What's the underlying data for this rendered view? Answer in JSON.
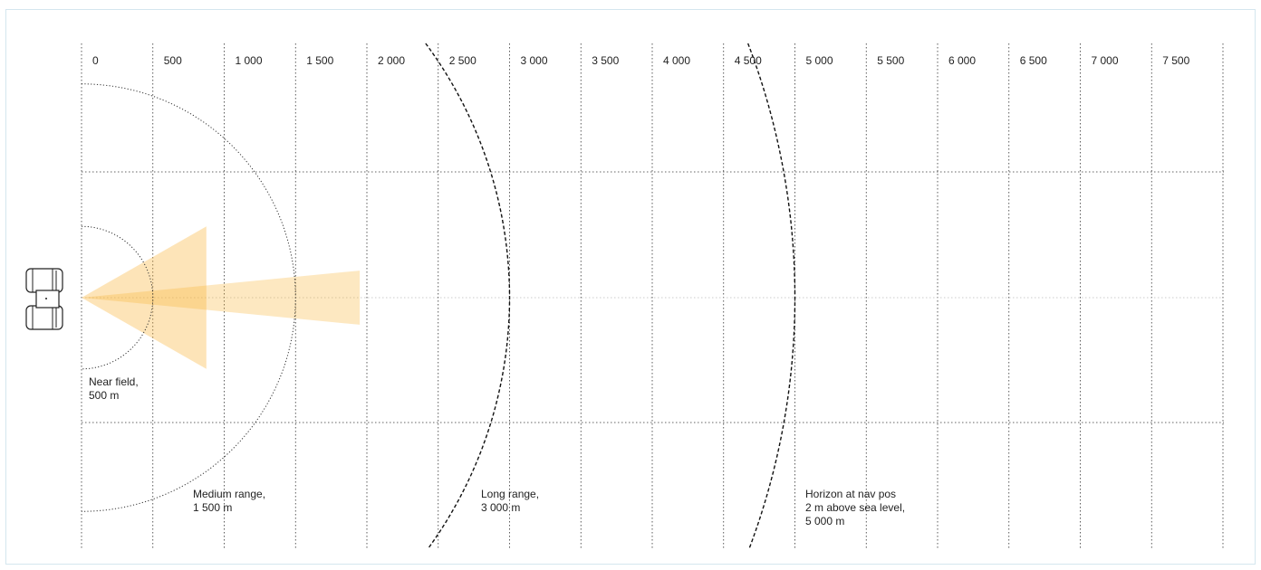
{
  "scale": {
    "unit": "m",
    "ticks": [
      {
        "value": 0,
        "label": "0"
      },
      {
        "value": 500,
        "label": "500"
      },
      {
        "value": 1000,
        "label": "1 000"
      },
      {
        "value": 1500,
        "label": "1 500"
      },
      {
        "value": 2000,
        "label": "2 000"
      },
      {
        "value": 2500,
        "label": "2 500"
      },
      {
        "value": 3000,
        "label": "3 000"
      },
      {
        "value": 3500,
        "label": "3 500"
      },
      {
        "value": 4000,
        "label": "4 000"
      },
      {
        "value": 4500,
        "label": "4 500"
      },
      {
        "value": 5000,
        "label": "5 000"
      },
      {
        "value": 5500,
        "label": "5 500"
      },
      {
        "value": 6000,
        "label": "6 000"
      },
      {
        "value": 6500,
        "label": "6 500"
      },
      {
        "value": 7000,
        "label": "7 000"
      },
      {
        "value": 7500,
        "label": "7 500"
      },
      {
        "value": 8000,
        "label": ""
      }
    ]
  },
  "ranges": [
    {
      "id": "near-field",
      "radius": 500,
      "style": "dotted",
      "label_lines": [
        "Near field,",
        "500 m"
      ]
    },
    {
      "id": "medium-range",
      "radius": 1500,
      "style": "dotted",
      "label_lines": [
        "Medium range,",
        "1 500 m"
      ]
    },
    {
      "id": "long-range",
      "radius": 3000,
      "style": "dashed",
      "label_lines": [
        "Long range,",
        "3 000 m"
      ]
    },
    {
      "id": "horizon",
      "radius": 5000,
      "style": "dashed",
      "label_lines": [
        "Horizon at nav pos",
        "2 m above sea level,",
        "5 000 m"
      ]
    }
  ],
  "beams": {
    "color": "#f9b233",
    "items": [
      {
        "id": "wide-beam",
        "reach": 875,
        "half_width": 500,
        "opacity": 0.35
      },
      {
        "id": "narrow-beam",
        "reach": 1950,
        "half_width": 190,
        "opacity": 0.3
      }
    ]
  },
  "icons": {
    "vessel": "boat-top-view-icon"
  }
}
